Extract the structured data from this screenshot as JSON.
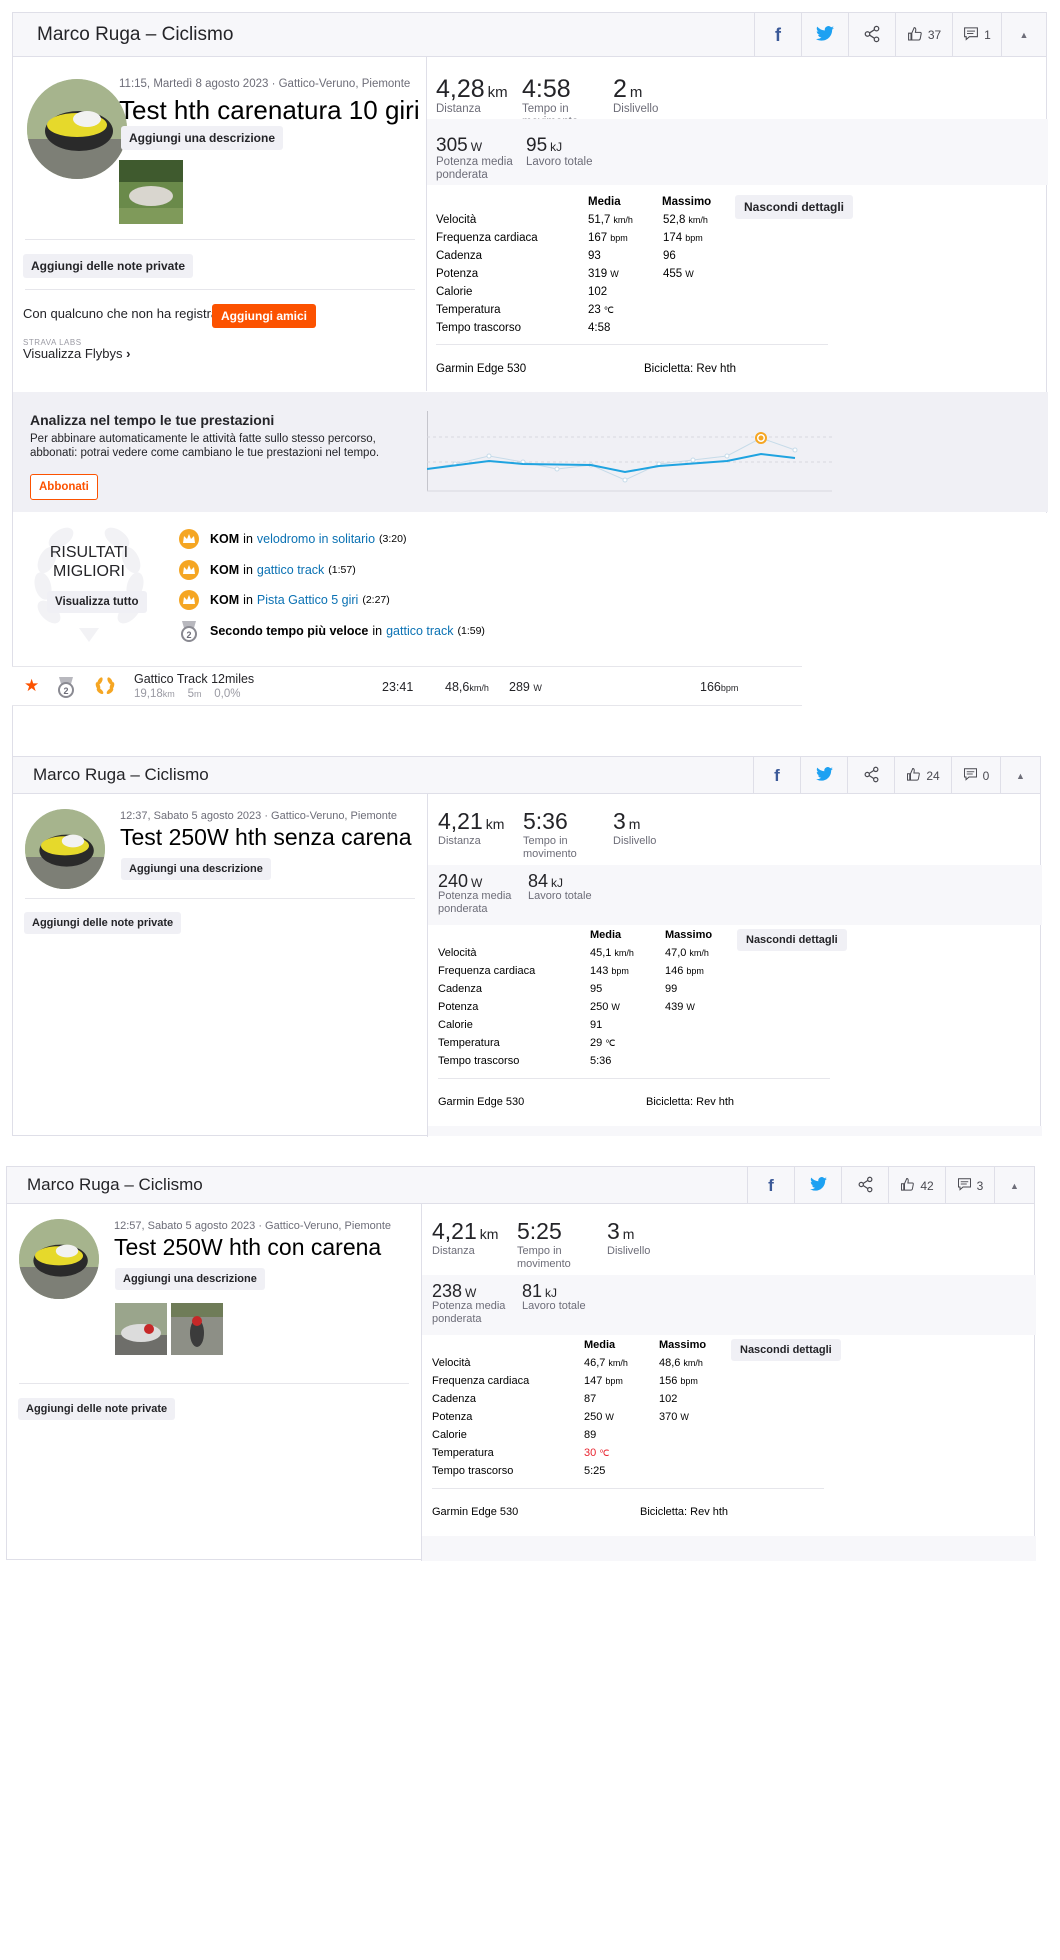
{
  "activities": [
    {
      "header": {
        "title": "Marco Ruga – Ciclismo",
        "kudos": "37",
        "comments": "1"
      },
      "meta": "11:15, Martedì 8 agosto 2023 · Gattico-Veruno, Piemonte",
      "title": "Test hth carenatura 10 giri",
      "add_description": "Aggiungi una descrizione",
      "add_notes": "Aggiungi delle note private",
      "others_prompt": "Con qualcuno che non ha registrato?",
      "add_friends": "Aggiungi amici",
      "labs_tag": "STRAVA LABS",
      "flybys": "Visualizza Flybys",
      "stats": {
        "distance": {
          "value": "4,28",
          "unit": "km",
          "label": "Distanza"
        },
        "moving_time": {
          "value": "4:58",
          "label": "Tempo in movimento"
        },
        "elevation": {
          "value": "2",
          "unit": "m",
          "label": "Dislivello"
        },
        "weighted_power": {
          "value": "305",
          "unit": "W",
          "label": "Potenza media ponderata"
        },
        "work": {
          "value": "95",
          "unit": "kJ",
          "label": "Lavoro totale"
        }
      },
      "details_button": "Nascondi dettagli",
      "table": {
        "col_avg": "Media",
        "col_max": "Massimo",
        "rows": [
          {
            "label": "Velocità",
            "avg": "51,7",
            "avg_unit": "km/h",
            "max": "52,8",
            "max_unit": "km/h"
          },
          {
            "label": "Frequenza cardiaca",
            "avg": "167",
            "avg_unit": "bpm",
            "max": "174",
            "max_unit": "bpm"
          },
          {
            "label": "Cadenza",
            "avg": "93",
            "avg_unit": "",
            "max": "96",
            "max_unit": ""
          },
          {
            "label": "Potenza",
            "avg": "319",
            "avg_unit": "W",
            "max": "455",
            "max_unit": "W"
          },
          {
            "label": "Calorie",
            "avg": "102",
            "avg_unit": "",
            "max": "",
            "max_unit": ""
          },
          {
            "label": "Temperatura",
            "avg": "23",
            "avg_unit": "℃",
            "max": "",
            "max_unit": ""
          },
          {
            "label": "Tempo trascorso",
            "avg": "4:58",
            "avg_unit": "",
            "max": "",
            "max_unit": ""
          }
        ]
      },
      "device": "Garmin Edge 530",
      "bike": "Bicicletta: Rev hth",
      "promo": {
        "title": "Analizza nel tempo le tue prestazioni",
        "text": "Per abbinare automaticamente le attività fatte sullo stesso percorso, abbonati: potrai vedere come cambiano le tue prestazioni nel tempo.",
        "button": "Abbonati"
      },
      "results": {
        "badge_line1": "RISULTATI",
        "badge_line2": "MIGLIORI",
        "view_all": "Visualizza tutto",
        "items": [
          {
            "prefix": "KOM",
            "mid": "in",
            "segment": "velodromo in solitario",
            "time": "(3:20)",
            "icon": "crown-gold"
          },
          {
            "prefix": "KOM",
            "mid": "in",
            "segment": "gattico track",
            "time": "(1:57)",
            "icon": "crown-gold"
          },
          {
            "prefix": "KOM",
            "mid": "in",
            "segment": "Pista Gattico 5 giri",
            "time": "(2:27)",
            "icon": "crown-gold"
          },
          {
            "prefix": "Secondo tempo più veloce",
            "mid": "in",
            "segment": "gattico track",
            "time": "(1:59)",
            "icon": "medal-2"
          }
        ]
      },
      "segment_row": {
        "name": "Gattico Track 12miles",
        "distance": "19,18",
        "distance_unit": "km",
        "elev": "5",
        "elev_unit": "m",
        "grade": "0,0%",
        "time": "23:41",
        "speed": "48,6",
        "speed_unit": "km/h",
        "power": "289",
        "power_unit": "W",
        "hr": "166",
        "hr_unit": "bpm"
      }
    },
    {
      "header": {
        "title": "Marco Ruga – Ciclismo",
        "kudos": "24",
        "comments": "0"
      },
      "meta": "12:37, Sabato 5 agosto 2023 · Gattico-Veruno, Piemonte",
      "title": "Test 250W hth senza carena",
      "add_description": "Aggiungi una descrizione",
      "add_notes": "Aggiungi delle note private",
      "stats": {
        "distance": {
          "value": "4,21",
          "unit": "km",
          "label": "Distanza"
        },
        "moving_time": {
          "value": "5:36",
          "label": "Tempo in movimento"
        },
        "elevation": {
          "value": "3",
          "unit": "m",
          "label": "Dislivello"
        },
        "weighted_power": {
          "value": "240",
          "unit": "W",
          "label": "Potenza media ponderata"
        },
        "work": {
          "value": "84",
          "unit": "kJ",
          "label": "Lavoro totale"
        }
      },
      "details_button": "Nascondi dettagli",
      "table": {
        "col_avg": "Media",
        "col_max": "Massimo",
        "rows": [
          {
            "label": "Velocità",
            "avg": "45,1",
            "avg_unit": "km/h",
            "max": "47,0",
            "max_unit": "km/h"
          },
          {
            "label": "Frequenza cardiaca",
            "avg": "143",
            "avg_unit": "bpm",
            "max": "146",
            "max_unit": "bpm"
          },
          {
            "label": "Cadenza",
            "avg": "95",
            "avg_unit": "",
            "max": "99",
            "max_unit": ""
          },
          {
            "label": "Potenza",
            "avg": "250",
            "avg_unit": "W",
            "max": "439",
            "max_unit": "W"
          },
          {
            "label": "Calorie",
            "avg": "91",
            "avg_unit": "",
            "max": "",
            "max_unit": ""
          },
          {
            "label": "Temperatura",
            "avg": "29",
            "avg_unit": "℃",
            "max": "",
            "max_unit": ""
          },
          {
            "label": "Tempo trascorso",
            "avg": "5:36",
            "avg_unit": "",
            "max": "",
            "max_unit": ""
          }
        ]
      },
      "device": "Garmin Edge 530",
      "bike": "Bicicletta: Rev hth"
    },
    {
      "header": {
        "title": "Marco Ruga – Ciclismo",
        "kudos": "42",
        "comments": "3"
      },
      "meta": "12:57, Sabato 5 agosto 2023 · Gattico-Veruno, Piemonte",
      "title": "Test 250W hth con carena",
      "add_description": "Aggiungi una descrizione",
      "add_notes": "Aggiungi delle note private",
      "stats": {
        "distance": {
          "value": "4,21",
          "unit": "km",
          "label": "Distanza"
        },
        "moving_time": {
          "value": "5:25",
          "label": "Tempo in movimento"
        },
        "elevation": {
          "value": "3",
          "unit": "m",
          "label": "Dislivello"
        },
        "weighted_power": {
          "value": "238",
          "unit": "W",
          "label": "Potenza media ponderata"
        },
        "work": {
          "value": "81",
          "unit": "kJ",
          "label": "Lavoro totale"
        }
      },
      "details_button": "Nascondi dettagli",
      "table": {
        "col_avg": "Media",
        "col_max": "Massimo",
        "rows": [
          {
            "label": "Velocità",
            "avg": "46,7",
            "avg_unit": "km/h",
            "max": "48,6",
            "max_unit": "km/h"
          },
          {
            "label": "Frequenza cardiaca",
            "avg": "147",
            "avg_unit": "bpm",
            "max": "156",
            "max_unit": "bpm"
          },
          {
            "label": "Cadenza",
            "avg": "87",
            "avg_unit": "",
            "max": "102",
            "max_unit": ""
          },
          {
            "label": "Potenza",
            "avg": "250",
            "avg_unit": "W",
            "max": "370",
            "max_unit": "W"
          },
          {
            "label": "Calorie",
            "avg": "89",
            "avg_unit": "",
            "max": "",
            "max_unit": ""
          },
          {
            "label": "Temperatura",
            "avg": "30",
            "avg_unit": "℃",
            "max": "",
            "max_unit": ""
          },
          {
            "label": "Tempo trascorso",
            "avg": "5:25",
            "avg_unit": "",
            "max": "",
            "max_unit": ""
          }
        ]
      },
      "device": "Garmin Edge 530",
      "bike": "Bicicletta: Rev hth"
    }
  ],
  "colors": {
    "brand": "#fc5200",
    "link": "#0a71b3",
    "trend_line": "#1fa3e0",
    "kom_gold": "#f5a623",
    "temp_hot": "#e8232f"
  }
}
